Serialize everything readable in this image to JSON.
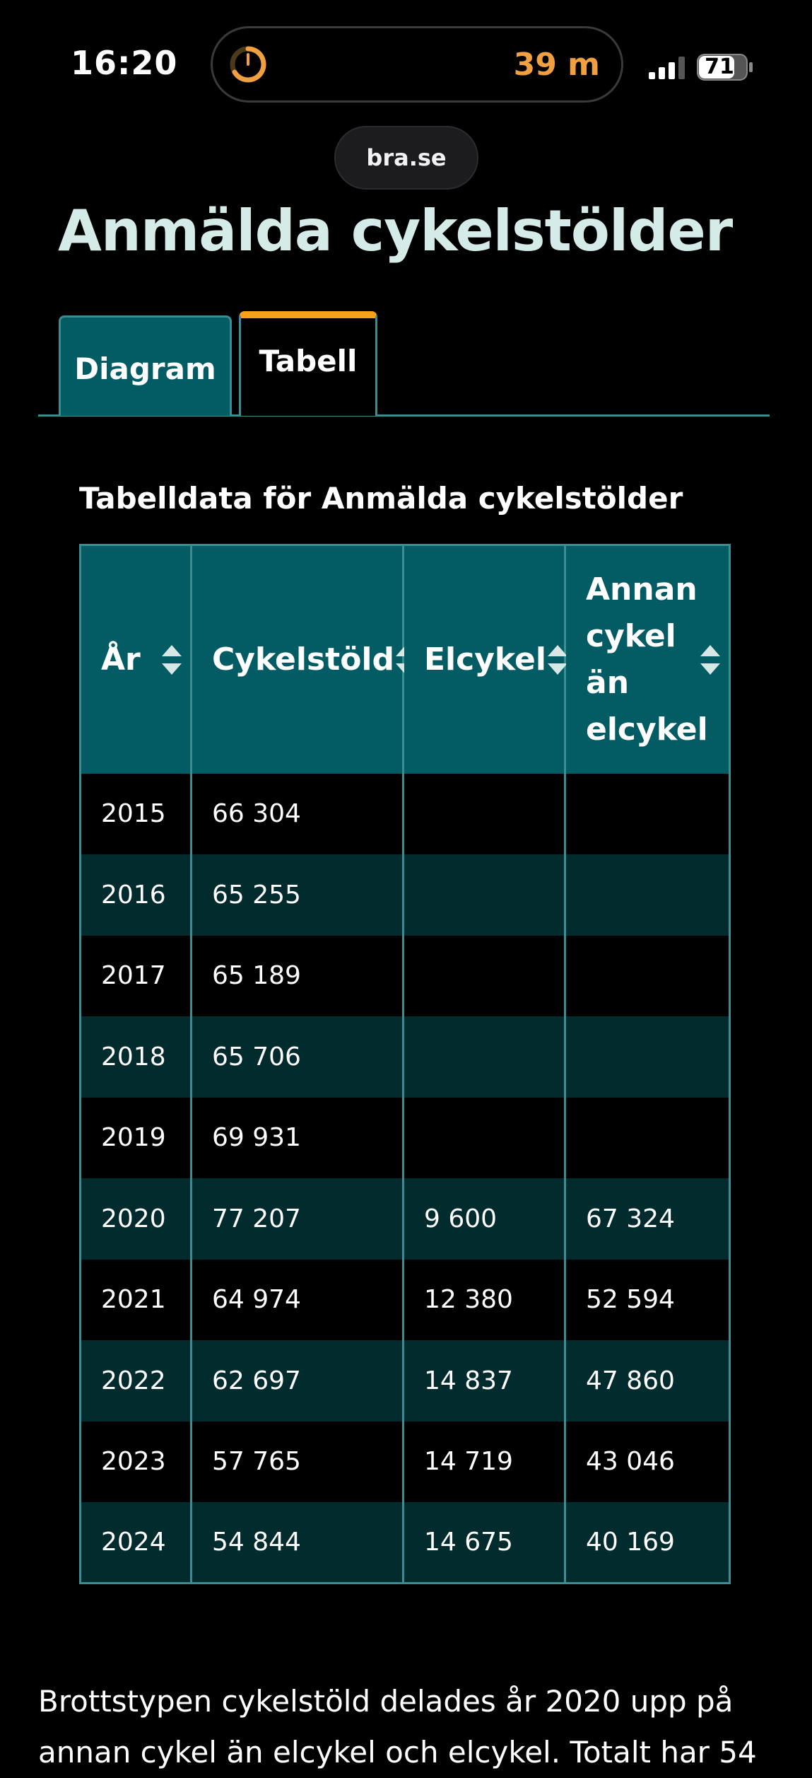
{
  "status": {
    "time": "16:20",
    "timer": "39 m",
    "battery": "71"
  },
  "url": "bra.se",
  "title": "Anmälda cykelstölder",
  "tabs": [
    {
      "label": "Diagram",
      "active": false
    },
    {
      "label": "Tabell",
      "active": true
    }
  ],
  "table": {
    "caption": "Tabelldata för Anmälda cykelstölder",
    "headers": [
      "År",
      "Cykelstöld",
      "Elcykel",
      "Annan cykel än elcykel"
    ],
    "rows": [
      [
        "2015",
        "66 304",
        "",
        ""
      ],
      [
        "2016",
        "65 255",
        "",
        ""
      ],
      [
        "2017",
        "65 189",
        "",
        ""
      ],
      [
        "2018",
        "65 706",
        "",
        ""
      ],
      [
        "2019",
        "69 931",
        "",
        ""
      ],
      [
        "2020",
        "77 207",
        "9 600",
        "67 324"
      ],
      [
        "2021",
        "64 974",
        "12 380",
        "52 594"
      ],
      [
        "2022",
        "62 697",
        "14 837",
        "47 860"
      ],
      [
        "2023",
        "57 765",
        "14 719",
        "43 046"
      ],
      [
        "2024",
        "54 844",
        "14 675",
        "40 169"
      ]
    ]
  },
  "body_text": "Brottstypen cykelstöld delades år 2020 upp på annan cykel än elcykel och elcykel. Totalt har 54",
  "colors": {
    "accent_teal": "#035c63",
    "border_teal": "#3b8d92",
    "tab_highlight": "#f7a11a",
    "title_color": "#d4ebe8",
    "timer_orange": "#f0a040"
  },
  "icons": {
    "timer_ring": "timer-ring-icon",
    "signal": "cellular-signal-icon",
    "battery": "battery-icon",
    "sort": "sort-updown-icon"
  }
}
